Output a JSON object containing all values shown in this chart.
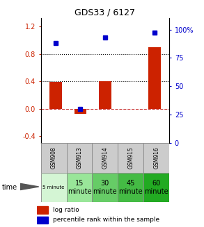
{
  "title": "GDS33 / 6127",
  "samples": [
    "GSM908",
    "GSM913",
    "GSM914",
    "GSM915",
    "GSM916"
  ],
  "log_ratio": [
    0.39,
    -0.07,
    0.4,
    null,
    0.9
  ],
  "percentile_rank": [
    88,
    30,
    93,
    null,
    97
  ],
  "bar_color": "#cc2200",
  "dot_color": "#0000cc",
  "ylim_left": [
    -0.5,
    1.32
  ],
  "ylim_right": [
    0,
    110
  ],
  "left_ticks": [
    -0.4,
    0.0,
    0.4,
    0.8,
    1.2
  ],
  "right_ticks": [
    0,
    25,
    50,
    75,
    100
  ],
  "hline_positions": [
    0.4,
    0.8
  ],
  "hline_zero": 0.0,
  "time_labels": [
    "5 minute",
    "15\nminute",
    "30\nminute",
    "45\nminute",
    "60\nminute"
  ],
  "time_colors": [
    "#d4f5d4",
    "#99e699",
    "#66cc66",
    "#44bb44",
    "#22aa22"
  ],
  "gsm_bg": "#cccccc",
  "table_border": "#888888",
  "bar_width": 0.5
}
